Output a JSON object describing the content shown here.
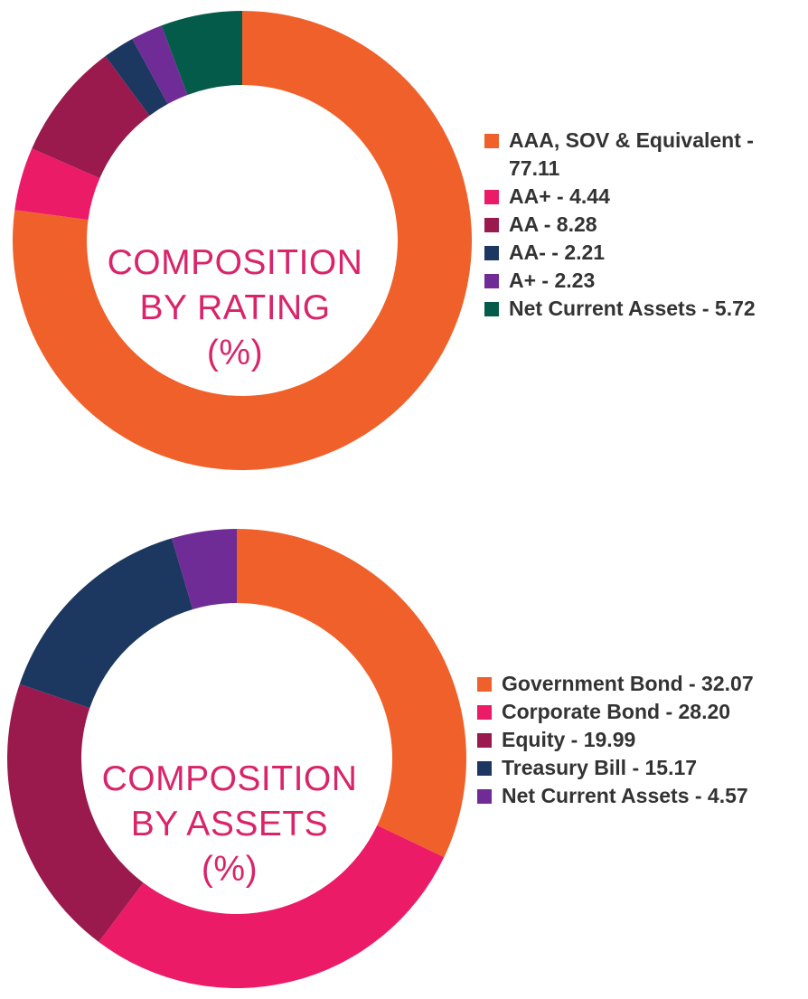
{
  "chart_data": [
    {
      "type": "pie",
      "variant": "donut",
      "center_title": [
        "COMPOSITION",
        "BY RATING",
        "(%)"
      ],
      "legend_position": "right",
      "slices": [
        {
          "label": "AAA, SOV & Equivalent - 77.11",
          "value": 77.11,
          "color": "#f0602a"
        },
        {
          "label": "AA+ - 4.44",
          "value": 4.44,
          "color": "#ec1b68"
        },
        {
          "label": "AA - 8.28",
          "value": 8.28,
          "color": "#9a1a4e"
        },
        {
          "label": "AA- - 2.21",
          "value": 2.21,
          "color": "#1c3760"
        },
        {
          "label": "A+ - 2.23",
          "value": 2.23,
          "color": "#702c96"
        },
        {
          "label": "Net Current Assets - 5.72",
          "value": 5.72,
          "color": "#045b4a"
        }
      ]
    },
    {
      "type": "pie",
      "variant": "donut",
      "center_title": [
        "COMPOSITION",
        "BY ASSETS",
        "(%)"
      ],
      "legend_position": "right",
      "slices": [
        {
          "label": "Government Bond - 32.07",
          "value": 32.07,
          "color": "#f0602a"
        },
        {
          "label": "Corporate Bond - 28.20",
          "value": 28.2,
          "color": "#ec1b68"
        },
        {
          "label": "Equity - 19.99",
          "value": 19.99,
          "color": "#9a1a4e"
        },
        {
          "label": "Treasury Bill - 15.17",
          "value": 15.17,
          "color": "#1c3760"
        },
        {
          "label": "Net Current Assets - 4.57",
          "value": 4.57,
          "color": "#702c96"
        }
      ]
    }
  ]
}
